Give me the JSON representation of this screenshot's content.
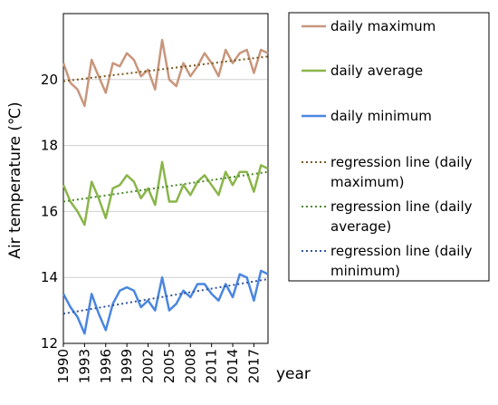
{
  "chart_data": {
    "type": "line",
    "ylabel": "Air temperature (℃)",
    "xlabel": "year",
    "ylim": [
      12,
      22
    ],
    "yticks": [
      12,
      14,
      16,
      18,
      20
    ],
    "xtick_labels": [
      "1990",
      "1993",
      "1996",
      "1999",
      "2002",
      "2005",
      "2008",
      "2011",
      "2014",
      "2017"
    ],
    "x": [
      1990,
      1991,
      1992,
      1993,
      1994,
      1995,
      1996,
      1997,
      1998,
      1999,
      2000,
      2001,
      2002,
      2003,
      2004,
      2005,
      2006,
      2007,
      2008,
      2009,
      2010,
      2011,
      2012,
      2013,
      2014,
      2015,
      2016,
      2017,
      2018,
      2019
    ],
    "grid": "horizontal",
    "legend_position": "right",
    "series": [
      {
        "name": "daily maximum",
        "color": "#c8967d",
        "style": "solid",
        "values": [
          20.5,
          19.9,
          19.7,
          19.2,
          20.6,
          20.1,
          19.6,
          20.5,
          20.4,
          20.8,
          20.6,
          20.1,
          20.3,
          19.7,
          21.2,
          20.0,
          19.8,
          20.5,
          20.1,
          20.4,
          20.8,
          20.5,
          20.1,
          20.9,
          20.5,
          20.8,
          20.9,
          20.2,
          20.9,
          20.8
        ]
      },
      {
        "name": "daily average",
        "color": "#8ab54a",
        "style": "solid",
        "values": [
          16.8,
          16.3,
          16.0,
          15.6,
          16.9,
          16.4,
          15.8,
          16.7,
          16.8,
          17.1,
          16.9,
          16.4,
          16.7,
          16.2,
          17.5,
          16.3,
          16.3,
          16.8,
          16.5,
          16.9,
          17.1,
          16.8,
          16.5,
          17.2,
          16.8,
          17.2,
          17.2,
          16.6,
          17.4,
          17.3
        ]
      },
      {
        "name": "daily minimum",
        "color": "#4a86e0",
        "style": "solid",
        "values": [
          13.5,
          13.1,
          12.8,
          12.3,
          13.5,
          12.9,
          12.4,
          13.2,
          13.6,
          13.7,
          13.6,
          13.1,
          13.3,
          13.0,
          14.0,
          13.0,
          13.2,
          13.6,
          13.4,
          13.8,
          13.8,
          13.5,
          13.3,
          13.8,
          13.4,
          14.1,
          14.0,
          13.3,
          14.2,
          14.1
        ]
      },
      {
        "name": "regression line (daily maximum)",
        "color": "#7a5a20",
        "style": "dotted",
        "start": [
          1990,
          19.95
        ],
        "end": [
          2019,
          20.7
        ]
      },
      {
        "name": "regression line (daily average)",
        "color": "#4e8a2e",
        "style": "dotted",
        "start": [
          1990,
          16.3
        ],
        "end": [
          2019,
          17.2
        ]
      },
      {
        "name": "regression line (daily minimum)",
        "color": "#3355a0",
        "style": "dotted",
        "start": [
          1990,
          12.9
        ],
        "end": [
          2019,
          13.95
        ]
      }
    ]
  }
}
